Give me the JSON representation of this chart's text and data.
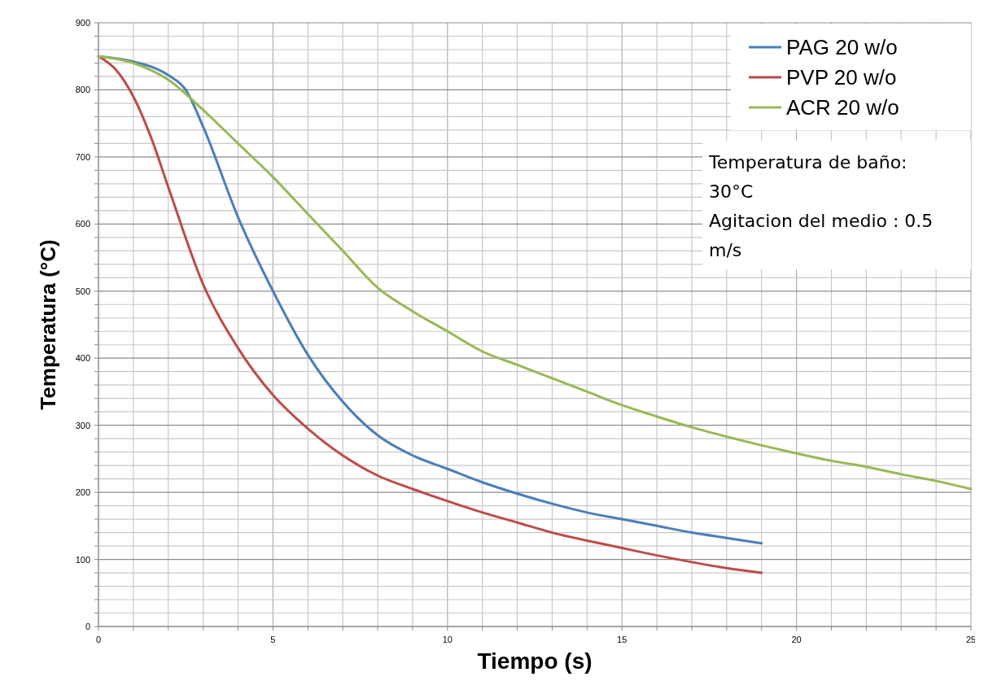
{
  "chart_data": {
    "type": "line",
    "xlabel": "Tiempo (s)",
    "ylabel": "Temperatura (°C)",
    "xlim": [
      0,
      25
    ],
    "ylim": [
      0,
      900
    ],
    "xticks": [
      0,
      {
        "value": 1,
        "label": null
      },
      {
        "value": 2,
        "label": null
      },
      {
        "value": 3,
        "label": null
      },
      {
        "value": 4,
        "label": null
      },
      5,
      {
        "value": 6,
        "label": null
      },
      {
        "value": 7,
        "label": null
      },
      {
        "value": 8,
        "label": null
      },
      {
        "value": 9,
        "label": null
      },
      10,
      {
        "value": 11,
        "label": null
      },
      {
        "value": 12,
        "label": null
      },
      {
        "value": 13,
        "label": null
      },
      {
        "value": 14,
        "label": null
      },
      15,
      {
        "value": 16,
        "label": null
      },
      {
        "value": 17,
        "label": null
      },
      {
        "value": 18,
        "label": null
      },
      {
        "value": 19,
        "label": null
      },
      20,
      {
        "value": 21,
        "label": null
      },
      {
        "value": 22,
        "label": null
      },
      {
        "value": 23,
        "label": null
      },
      {
        "value": 24,
        "label": null
      },
      25
    ],
    "yticks": [
      0,
      {
        "value": 20,
        "label": null
      },
      {
        "value": 40,
        "label": null
      },
      {
        "value": 60,
        "label": null
      },
      {
        "value": 80,
        "label": null
      },
      100,
      {
        "value": 120,
        "label": null
      },
      {
        "value": 140,
        "label": null
      },
      {
        "value": 160,
        "label": null
      },
      {
        "value": 180,
        "label": null
      },
      200,
      {
        "value": 220,
        "label": null
      },
      {
        "value": 240,
        "label": null
      },
      {
        "value": 260,
        "label": null
      },
      {
        "value": 280,
        "label": null
      },
      300,
      {
        "value": 320,
        "label": null
      },
      {
        "value": 340,
        "label": null
      },
      {
        "value": 360,
        "label": null
      },
      {
        "value": 380,
        "label": null
      },
      400,
      {
        "value": 420,
        "label": null
      },
      {
        "value": 440,
        "label": null
      },
      {
        "value": 460,
        "label": null
      },
      {
        "value": 480,
        "label": null
      },
      500,
      {
        "value": 520,
        "label": null
      },
      {
        "value": 540,
        "label": null
      },
      {
        "value": 560,
        "label": null
      },
      {
        "value": 580,
        "label": null
      },
      600,
      {
        "value": 620,
        "label": null
      },
      {
        "value": 640,
        "label": null
      },
      {
        "value": 660,
        "label": null
      },
      {
        "value": 680,
        "label": null
      },
      700,
      {
        "value": 720,
        "label": null
      },
      {
        "value": 740,
        "label": null
      },
      {
        "value": 760,
        "label": null
      },
      {
        "value": 780,
        "label": null
      },
      800,
      {
        "value": 820,
        "label": null
      },
      {
        "value": 840,
        "label": null
      },
      {
        "value": 860,
        "label": null
      },
      {
        "value": 880,
        "label": null
      },
      900
    ],
    "grid": true,
    "legend": "top right",
    "line_style": "solid",
    "marker": "none",
    "annotations": [
      "Temperatura de baño:",
      "30°C",
      "Agitacion del medio : 0.5",
      "m/s"
    ],
    "series": [
      {
        "name": "PAG 20 w/o",
        "color": "#4a7ebb",
        "x": [
          0,
          1,
          2,
          2.5,
          3,
          4,
          5,
          6,
          7,
          8,
          9,
          10,
          11,
          12,
          13,
          14,
          15,
          16,
          17,
          18,
          19
        ],
        "values": [
          850,
          842,
          822,
          800,
          745,
          610,
          500,
          405,
          335,
          285,
          255,
          235,
          215,
          198,
          183,
          170,
          160,
          150,
          140,
          132,
          124
        ]
      },
      {
        "name": "PVP 20 w/o",
        "color": "#be4b48",
        "x": [
          0,
          0.5,
          1,
          1.5,
          2,
          3,
          4,
          5,
          6,
          7,
          8,
          9,
          10,
          11,
          12,
          13,
          14,
          15,
          16,
          17,
          18,
          19
        ],
        "values": [
          850,
          830,
          790,
          730,
          655,
          510,
          415,
          345,
          295,
          255,
          225,
          205,
          187,
          170,
          155,
          140,
          128,
          117,
          106,
          96,
          87,
          80
        ]
      },
      {
        "name": "ACR 20 w/o",
        "color": "#98b954",
        "x": [
          0,
          1,
          2,
          3,
          4,
          5,
          6,
          7,
          8,
          9,
          10,
          11,
          12,
          13,
          14,
          15,
          16,
          17,
          18,
          19,
          20,
          21,
          22,
          23,
          24,
          25
        ],
        "values": [
          850,
          840,
          815,
          770,
          720,
          670,
          615,
          560,
          505,
          470,
          440,
          410,
          390,
          370,
          350,
          330,
          313,
          297,
          283,
          270,
          258,
          247,
          238,
          227,
          217,
          205
        ]
      }
    ]
  }
}
